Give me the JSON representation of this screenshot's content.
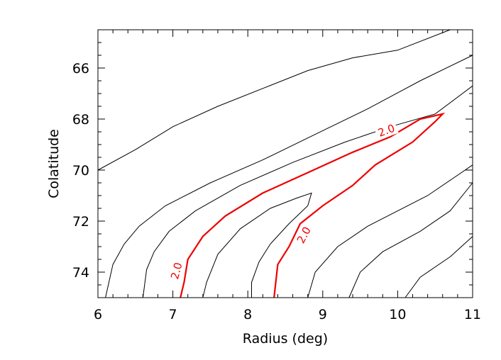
{
  "chart_data": {
    "type": "contour",
    "title": "",
    "xlabel": "Radius (deg)",
    "ylabel": "Colatitude",
    "xlim": [
      6,
      11
    ],
    "ylim": [
      75,
      64.5
    ],
    "y_inverted": true,
    "x_ticks": [
      6,
      7,
      8,
      9,
      10,
      11
    ],
    "y_ticks": [
      66,
      68,
      70,
      72,
      74
    ],
    "x_tick_labels": [
      "6",
      "7",
      "8",
      "9",
      "10",
      "11"
    ],
    "y_tick_labels": [
      "66",
      "68",
      "70",
      "72",
      "74"
    ],
    "highlight_color": "#ee0000",
    "contour_color": "#000000",
    "contours": [
      {
        "highlight": false,
        "points": [
          [
            6.0,
            70.0
          ],
          [
            6.5,
            69.2
          ],
          [
            7.0,
            68.3
          ],
          [
            7.6,
            67.5
          ],
          [
            8.2,
            66.8
          ],
          [
            8.8,
            66.1
          ],
          [
            9.4,
            65.6
          ],
          [
            10.0,
            65.3
          ],
          [
            10.7,
            64.5
          ]
        ]
      },
      {
        "highlight": false,
        "points": [
          [
            6.1,
            75.0
          ],
          [
            6.2,
            73.7
          ],
          [
            6.35,
            72.9
          ],
          [
            6.55,
            72.2
          ],
          [
            6.9,
            71.4
          ],
          [
            7.5,
            70.5
          ],
          [
            8.2,
            69.6
          ],
          [
            8.9,
            68.6
          ],
          [
            9.6,
            67.6
          ],
          [
            10.3,
            66.5
          ],
          [
            11.0,
            65.5
          ]
        ]
      },
      {
        "highlight": false,
        "points": [
          [
            6.6,
            75.0
          ],
          [
            6.65,
            73.9
          ],
          [
            6.75,
            73.2
          ],
          [
            6.95,
            72.4
          ],
          [
            7.3,
            71.6
          ],
          [
            7.9,
            70.6
          ],
          [
            8.6,
            69.7
          ],
          [
            9.3,
            68.9
          ],
          [
            9.9,
            68.3
          ],
          [
            10.5,
            67.8
          ],
          [
            11.0,
            66.7
          ]
        ]
      },
      {
        "highlight": true,
        "points": [
          [
            7.1,
            75.0
          ],
          [
            7.15,
            74.4
          ],
          [
            7.2,
            73.5
          ],
          [
            7.4,
            72.6
          ],
          [
            7.7,
            71.8
          ],
          [
            8.2,
            70.9
          ],
          [
            8.8,
            70.1
          ],
          [
            9.4,
            69.3
          ],
          [
            9.9,
            68.7
          ],
          [
            10.3,
            68.0
          ],
          [
            10.6,
            67.8
          ],
          [
            10.5,
            68.1
          ],
          [
            10.2,
            68.9
          ],
          [
            9.7,
            69.8
          ],
          [
            9.4,
            70.6
          ],
          [
            9.0,
            71.4
          ],
          [
            8.7,
            72.1
          ],
          [
            8.55,
            73.0
          ],
          [
            8.4,
            73.7
          ],
          [
            8.35,
            75.0
          ]
        ]
      },
      {
        "highlight": false,
        "points": [
          [
            7.4,
            75.0
          ],
          [
            7.45,
            74.4
          ],
          [
            7.6,
            73.3
          ],
          [
            7.9,
            72.3
          ],
          [
            8.3,
            71.5
          ],
          [
            8.65,
            71.1
          ],
          [
            8.85,
            70.9
          ],
          [
            8.8,
            71.4
          ],
          [
            8.55,
            72.1
          ],
          [
            8.3,
            72.9
          ],
          [
            8.15,
            73.6
          ],
          [
            8.05,
            74.4
          ],
          [
            8.05,
            75.0
          ]
        ]
      },
      {
        "highlight": false,
        "points": [
          [
            8.8,
            75.0
          ],
          [
            8.9,
            74.0
          ],
          [
            9.2,
            73.0
          ],
          [
            9.6,
            72.2
          ],
          [
            10.0,
            71.6
          ],
          [
            10.4,
            71.0
          ],
          [
            11.0,
            69.8
          ]
        ]
      },
      {
        "highlight": false,
        "points": [
          [
            9.35,
            75.0
          ],
          [
            9.5,
            74.0
          ],
          [
            9.8,
            73.2
          ],
          [
            10.3,
            72.4
          ],
          [
            10.7,
            71.6
          ],
          [
            11.0,
            70.5
          ]
        ]
      },
      {
        "highlight": false,
        "points": [
          [
            10.1,
            75.0
          ],
          [
            10.3,
            74.2
          ],
          [
            10.7,
            73.4
          ],
          [
            11.0,
            72.6
          ]
        ]
      }
    ],
    "contour_labels": [
      {
        "text": "2.0",
        "x": 9.85,
        "y": 68.45,
        "angle": -20
      },
      {
        "text": "2.0",
        "x": 8.75,
        "y": 72.55,
        "angle": -62
      },
      {
        "text": "2.0",
        "x": 7.05,
        "y": 73.95,
        "angle": -75
      }
    ]
  }
}
